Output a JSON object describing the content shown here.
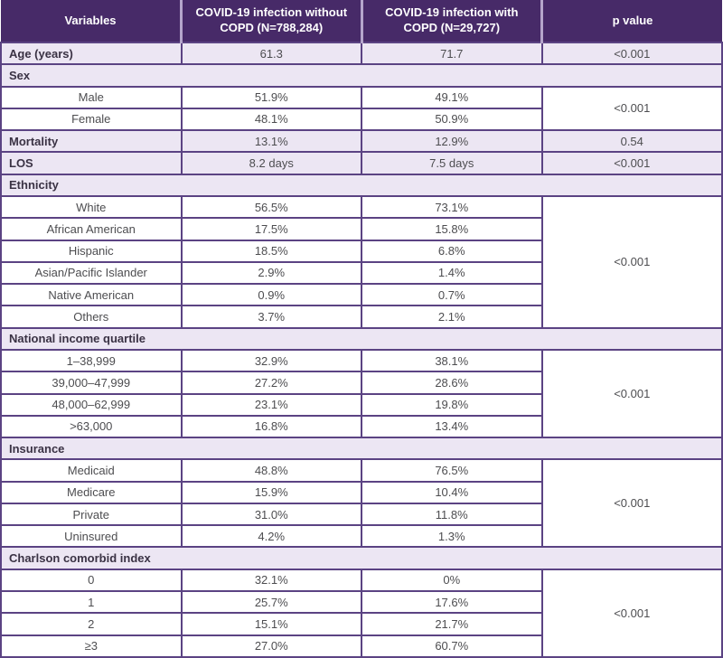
{
  "colors": {
    "header_bg": "#472a68",
    "header_text": "#ffffff",
    "header_divider": "#b5a5cb",
    "row_highlight_bg": "#ece6f3",
    "row_white_bg": "#ffffff",
    "border": "#5b4383",
    "label_text": "#3a3244",
    "value_text": "#4d4d50"
  },
  "chart_data": {
    "type": "table",
    "columns": [
      "Variables",
      "COVID-19 infection without COPD (N=788,284)",
      "COVID-19 infection with COPD (N=29,727)",
      "p value"
    ],
    "rows": [
      {
        "kind": "single",
        "label": "Age (years)",
        "without": "61.3",
        "with": "71.7",
        "p": "<0.001"
      },
      {
        "kind": "section",
        "label": "Sex"
      },
      {
        "kind": "sub",
        "label": "Male",
        "without": "51.9%",
        "with": "49.1%",
        "p": "<0.001"
      },
      {
        "kind": "sub",
        "label": "Female",
        "without": "48.1%",
        "with": "50.9%"
      },
      {
        "kind": "single",
        "label": "Mortality",
        "without": "13.1%",
        "with": "12.9%",
        "p": "0.54"
      },
      {
        "kind": "single",
        "label": "LOS",
        "without": "8.2 days",
        "with": "7.5 days",
        "p": "<0.001"
      },
      {
        "kind": "section",
        "label": "Ethnicity"
      },
      {
        "kind": "sub",
        "label": "White",
        "without": "56.5%",
        "with": "73.1%",
        "p": "<0.001"
      },
      {
        "kind": "sub",
        "label": "African American",
        "without": "17.5%",
        "with": "15.8%"
      },
      {
        "kind": "sub",
        "label": "Hispanic",
        "without": "18.5%",
        "with": "6.8%"
      },
      {
        "kind": "sub",
        "label": "Asian/Pacific Islander",
        "without": "2.9%",
        "with": "1.4%"
      },
      {
        "kind": "sub",
        "label": "Native American",
        "without": "0.9%",
        "with": "0.7%"
      },
      {
        "kind": "sub",
        "label": "Others",
        "without": "3.7%",
        "with": "2.1%"
      },
      {
        "kind": "section",
        "label": "National income quartile"
      },
      {
        "kind": "sub",
        "label": "1–38,999",
        "without": "32.9%",
        "with": "38.1%",
        "p": "<0.001"
      },
      {
        "kind": "sub",
        "label": "39,000–47,999",
        "without": "27.2%",
        "with": "28.6%"
      },
      {
        "kind": "sub",
        "label": "48,000–62,999",
        "without": "23.1%",
        "with": "19.8%"
      },
      {
        "kind": "sub",
        "label": ">63,000",
        "without": "16.8%",
        "with": "13.4%"
      },
      {
        "kind": "section",
        "label": "Insurance"
      },
      {
        "kind": "sub",
        "label": "Medicaid",
        "without": "48.8%",
        "with": "76.5%",
        "p": "<0.001"
      },
      {
        "kind": "sub",
        "label": "Medicare",
        "without": "15.9%",
        "with": "10.4%"
      },
      {
        "kind": "sub",
        "label": "Private",
        "without": "31.0%",
        "with": "11.8%"
      },
      {
        "kind": "sub",
        "label": "Uninsured",
        "without": "4.2%",
        "with": "1.3%"
      },
      {
        "kind": "section",
        "label": "Charlson comorbid index"
      },
      {
        "kind": "sub",
        "label": "0",
        "without": "32.1%",
        "with": "0%",
        "p": "<0.001"
      },
      {
        "kind": "sub",
        "label": "1",
        "without": "25.7%",
        "with": "17.6%"
      },
      {
        "kind": "sub",
        "label": "2",
        "without": "15.1%",
        "with": "21.7%"
      },
      {
        "kind": "sub",
        "label": "≥3",
        "without": "27.0%",
        "with": "60.7%"
      }
    ]
  }
}
